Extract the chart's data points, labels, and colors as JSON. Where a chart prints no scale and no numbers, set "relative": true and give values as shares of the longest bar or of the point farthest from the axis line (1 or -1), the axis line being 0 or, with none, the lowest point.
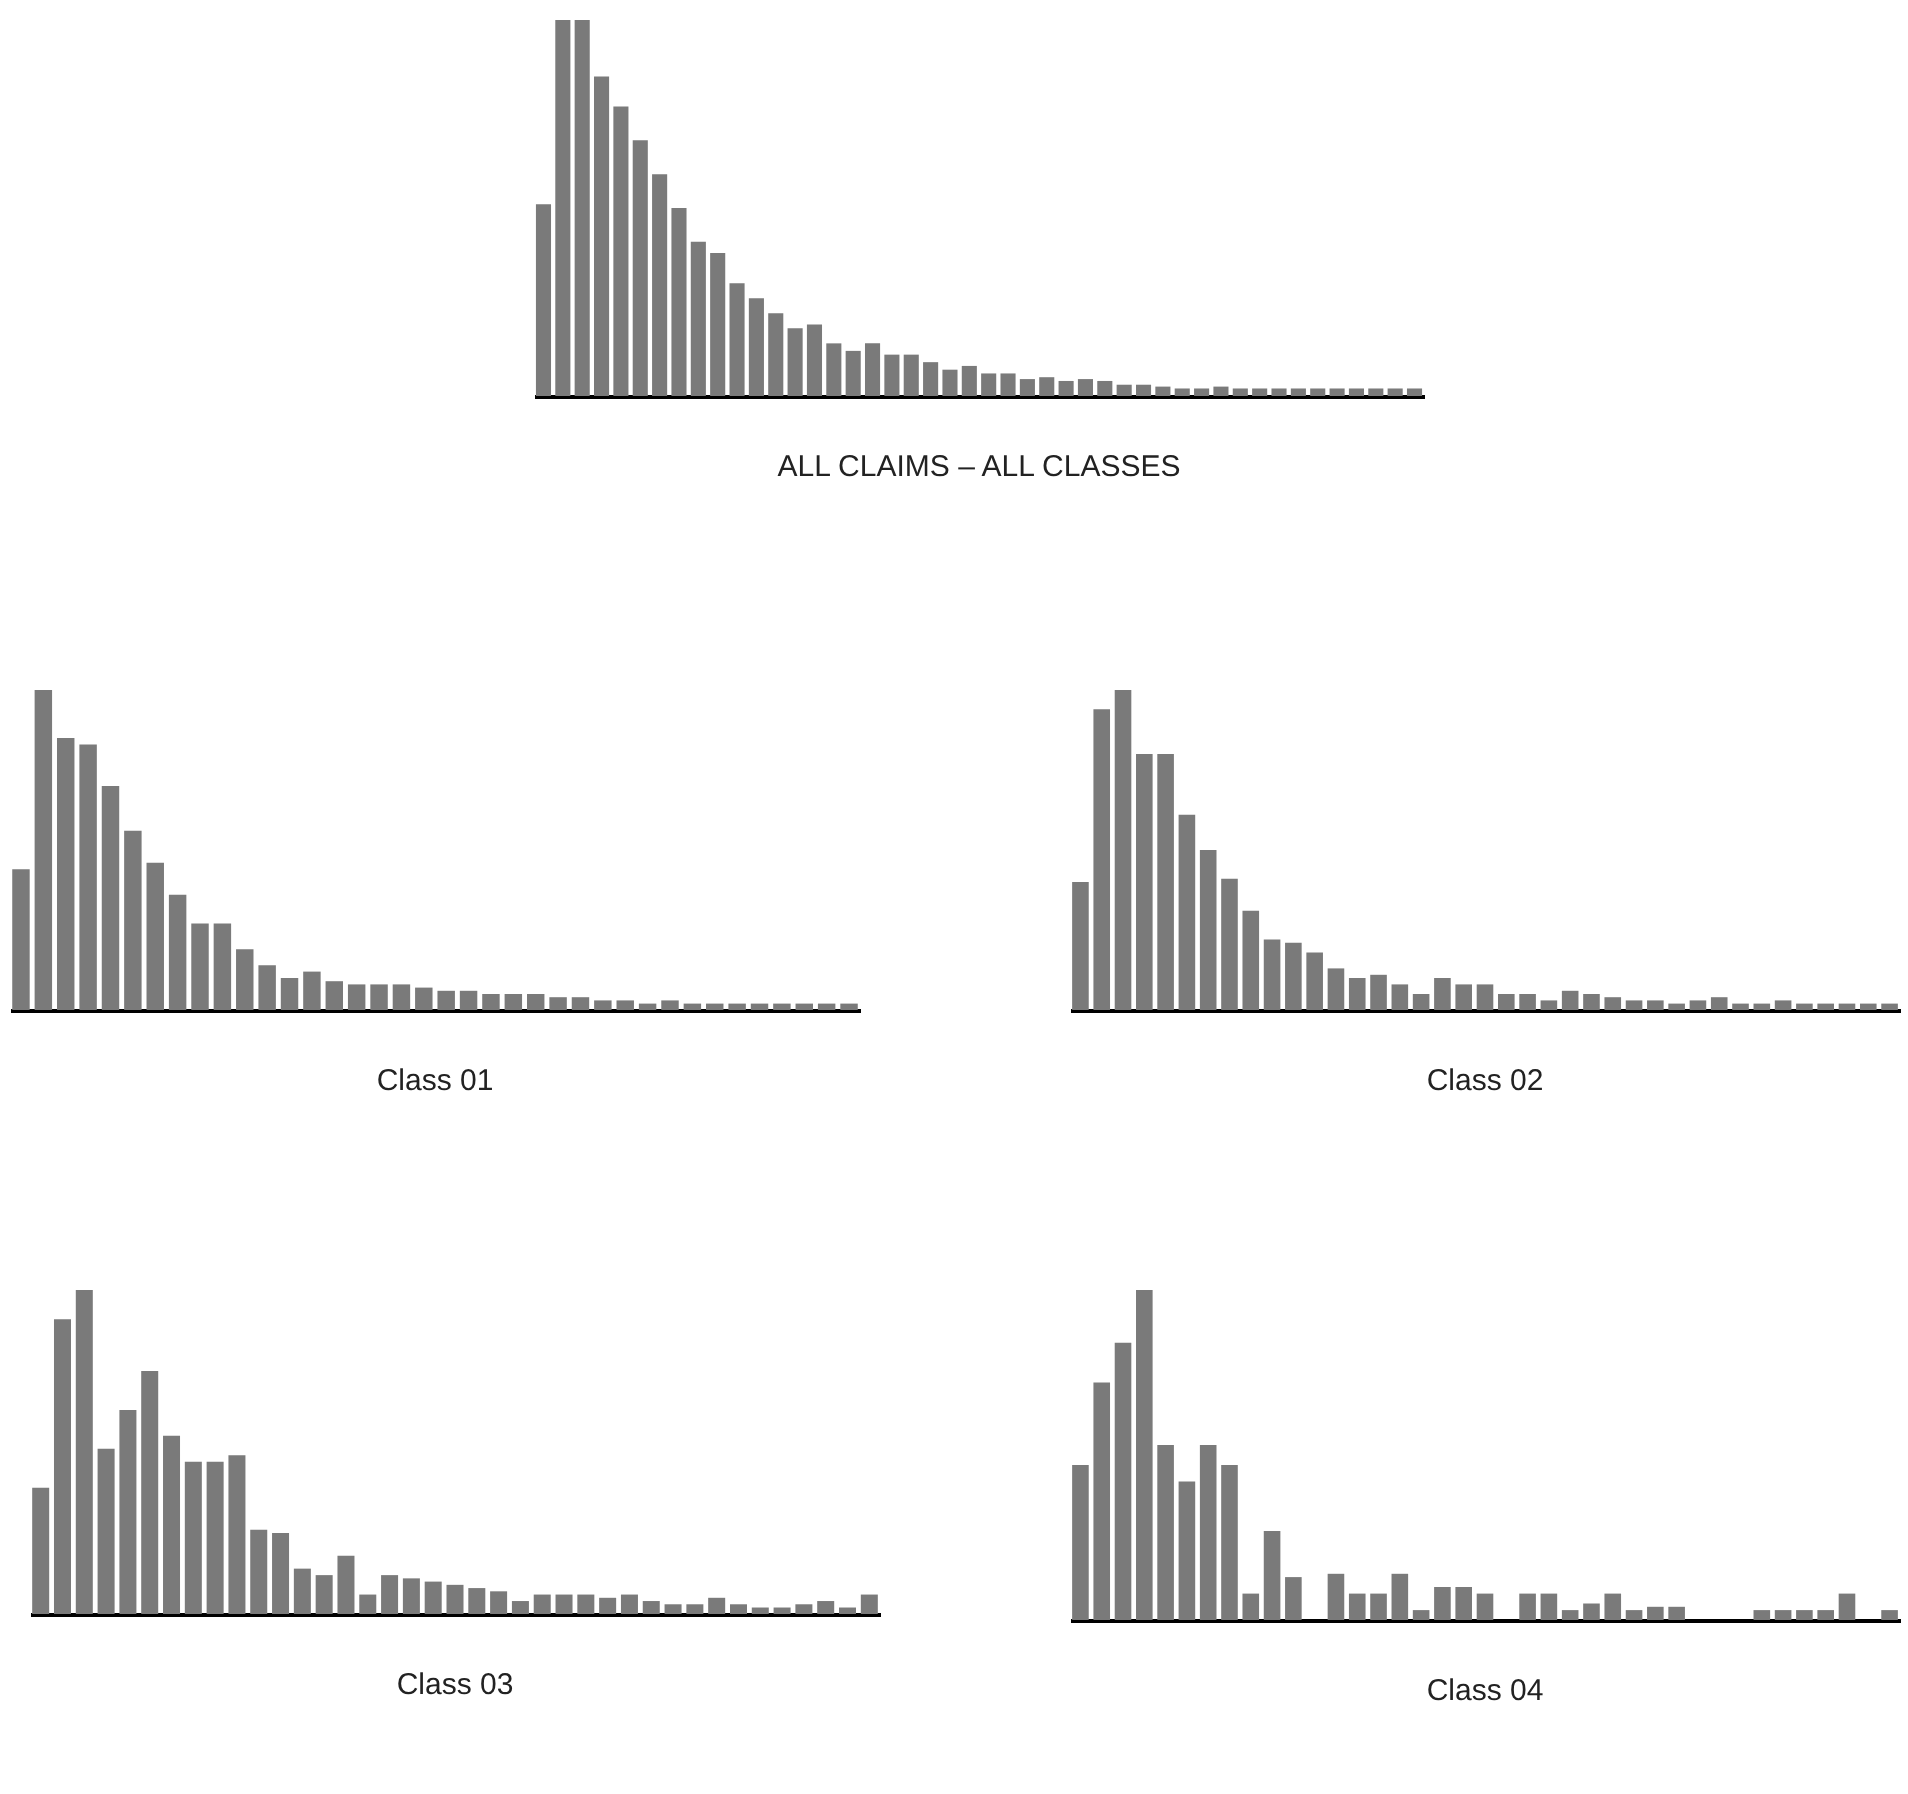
{
  "chart_data": [
    {
      "type": "bar",
      "title": "ALL CLAIMS – ALL CLASSES",
      "relative": true,
      "color": "#7a7a7a",
      "categories": [
        null,
        null,
        null,
        null,
        null,
        null,
        null,
        null,
        null,
        null,
        null,
        null,
        null,
        null,
        null,
        null,
        null,
        null,
        null,
        null,
        null,
        null,
        null,
        null,
        null,
        null,
        null,
        null,
        null,
        null,
        null,
        null,
        null,
        null,
        null,
        null,
        null,
        null,
        null,
        null,
        null,
        null,
        null,
        null,
        null,
        null
      ],
      "values": [
        0.51,
        1,
        1,
        0.85,
        0.77,
        0.68,
        0.59,
        0.5,
        0.41,
        0.38,
        0.3,
        0.26,
        0.22,
        0.18,
        0.19,
        0.14,
        0.12,
        0.14,
        0.11,
        0.11,
        0.09,
        0.07,
        0.08,
        0.06,
        0.06,
        0.045,
        0.05,
        0.04,
        0.045,
        0.04,
        0.03,
        0.03,
        0.025,
        0.02,
        0.02,
        0.025,
        0.02,
        0.02,
        0.02,
        0.02,
        0.02,
        0.02,
        0.02,
        0.02,
        0.02,
        0.02
      ]
    },
    {
      "type": "bar",
      "title": "Class 01",
      "relative": true,
      "color": "#7a7a7a",
      "categories": [
        null,
        null,
        null,
        null,
        null,
        null,
        null,
        null,
        null,
        null,
        null,
        null,
        null,
        null,
        null,
        null,
        null,
        null,
        null,
        null,
        null,
        null,
        null,
        null,
        null,
        null,
        null,
        null,
        null,
        null,
        null,
        null,
        null,
        null,
        null,
        null,
        null,
        null
      ],
      "values": [
        0.44,
        1,
        0.85,
        0.83,
        0.7,
        0.56,
        0.46,
        0.36,
        0.27,
        0.27,
        0.19,
        0.14,
        0.1,
        0.12,
        0.09,
        0.08,
        0.08,
        0.08,
        0.07,
        0.06,
        0.06,
        0.05,
        0.05,
        0.05,
        0.04,
        0.04,
        0.03,
        0.03,
        0.02,
        0.03,
        0.02,
        0.02,
        0.02,
        0.02,
        0.02,
        0.02,
        0.02,
        0.02
      ]
    },
    {
      "type": "bar",
      "title": "Class 02",
      "relative": true,
      "color": "#7a7a7a",
      "categories": [
        null,
        null,
        null,
        null,
        null,
        null,
        null,
        null,
        null,
        null,
        null,
        null,
        null,
        null,
        null,
        null,
        null,
        null,
        null,
        null,
        null,
        null,
        null,
        null,
        null,
        null,
        null,
        null,
        null,
        null,
        null,
        null,
        null,
        null,
        null,
        null,
        null,
        null,
        null
      ],
      "values": [
        0.4,
        0.94,
        1,
        0.8,
        0.8,
        0.61,
        0.5,
        0.41,
        0.31,
        0.22,
        0.21,
        0.18,
        0.13,
        0.1,
        0.11,
        0.08,
        0.05,
        0.1,
        0.08,
        0.08,
        0.05,
        0.05,
        0.03,
        0.06,
        0.05,
        0.04,
        0.03,
        0.03,
        0.02,
        0.03,
        0.04,
        0.02,
        0.02,
        0.03,
        0.02,
        0.02,
        0.02,
        0.02,
        0.02
      ]
    },
    {
      "type": "bar",
      "title": "Class 03",
      "relative": true,
      "color": "#7a7a7a",
      "categories": [
        null,
        null,
        null,
        null,
        null,
        null,
        null,
        null,
        null,
        null,
        null,
        null,
        null,
        null,
        null,
        null,
        null,
        null,
        null,
        null,
        null,
        null,
        null,
        null,
        null,
        null,
        null,
        null,
        null,
        null,
        null,
        null,
        null,
        null,
        null,
        null,
        null,
        null,
        null
      ],
      "values": [
        0.39,
        0.91,
        1,
        0.51,
        0.63,
        0.75,
        0.55,
        0.47,
        0.47,
        0.49,
        0.26,
        0.25,
        0.14,
        0.12,
        0.18,
        0.06,
        0.12,
        0.11,
        0.1,
        0.09,
        0.08,
        0.07,
        0.04,
        0.06,
        0.06,
        0.06,
        0.05,
        0.06,
        0.04,
        0.03,
        0.03,
        0.05,
        0.03,
        0.02,
        0.02,
        0.03,
        0.04,
        0.02,
        0.06
      ]
    },
    {
      "type": "bar",
      "title": "Class 04",
      "relative": true,
      "color": "#7a7a7a",
      "categories": [
        null,
        null,
        null,
        null,
        null,
        null,
        null,
        null,
        null,
        null,
        null,
        null,
        null,
        null,
        null,
        null,
        null,
        null,
        null,
        null,
        null,
        null,
        null,
        null,
        null,
        null,
        null,
        null,
        null,
        null,
        null,
        null,
        null,
        null,
        null,
        null,
        null,
        null,
        null
      ],
      "values": [
        0.47,
        0.72,
        0.84,
        1,
        0.53,
        0.42,
        0.53,
        0.47,
        0.08,
        0.27,
        0.13,
        0,
        0.14,
        0.08,
        0.08,
        0.14,
        0.03,
        0.1,
        0.1,
        0.08,
        0,
        0.08,
        0.08,
        0.03,
        0.05,
        0.08,
        0.03,
        0.04,
        0.04,
        0,
        0,
        0,
        0.03,
        0.03,
        0.03,
        0.03,
        0.08,
        0,
        0.03
      ]
    }
  ]
}
